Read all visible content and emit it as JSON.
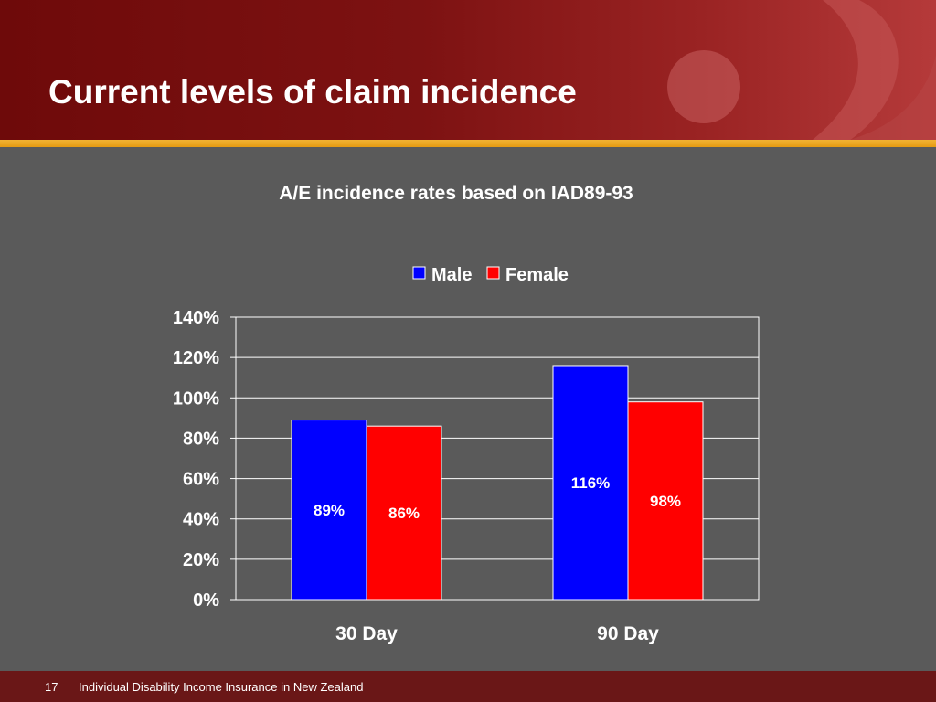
{
  "slide": {
    "title": "Current levels of claim incidence"
  },
  "footer": {
    "page_number": "17",
    "text": "Individual Disability Income Insurance in New Zealand"
  },
  "colors": {
    "header_red": "#7d1212",
    "gold": "#e59a12",
    "background": "#5a5a5a",
    "male": "#0000ff",
    "female": "#ff0000"
  },
  "chart_data": {
    "type": "bar",
    "title": "A/E incidence rates based on IAD89-93",
    "categories": [
      "30 Day",
      "90 Day"
    ],
    "series": [
      {
        "name": "Male",
        "values": [
          89,
          116
        ],
        "labels": [
          "89%",
          "116%"
        ],
        "color": "#0000ff",
        "label_color": "#ffffff"
      },
      {
        "name": "Female",
        "values": [
          86,
          98
        ],
        "labels": [
          "86%",
          "98%"
        ],
        "color": "#ff0000",
        "label_color": "#ffffff"
      }
    ],
    "ylim": [
      0,
      140
    ],
    "yticks": [
      "0%",
      "20%",
      "40%",
      "60%",
      "80%",
      "100%",
      "120%",
      "140%"
    ],
    "grid": true,
    "legend": "top-center"
  }
}
